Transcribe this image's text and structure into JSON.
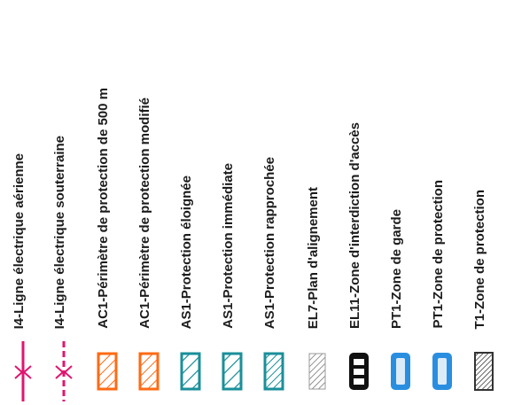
{
  "legend": {
    "items": [
      {
        "label": "I4-Ligne électrique aérienne",
        "symbol": "pink-line-cross-icon",
        "color": "#e0156f"
      },
      {
        "label": "I4-Ligne électrique souterraine",
        "symbol": "pink-dashed-line-cross-icon",
        "color": "#e0156f"
      },
      {
        "label": "AC1-Périmètre de protection de 500 m",
        "symbol": "orange-hatched-box-icon",
        "color": "#ff6a13"
      },
      {
        "label": "AC1-Périmètre de protection modifié",
        "symbol": "orange-hatched-box-icon",
        "color": "#ff6a13"
      },
      {
        "label": "AS1-Protection éloignée",
        "symbol": "teal-hatched-box-icon",
        "color": "#1a8f9a"
      },
      {
        "label": "AS1-Protection immédiate",
        "symbol": "teal-hatched-box-icon",
        "color": "#1a8f9a"
      },
      {
        "label": "AS1-Protection rapprochée",
        "symbol": "teal-dense-hatched-box-icon",
        "color": "#1a8f9a"
      },
      {
        "label": "EL7-Plan d'alignement",
        "symbol": "gray-hatched-box-icon",
        "color": "#777777"
      },
      {
        "label": "EL11-Zone d'interdiction d'accès",
        "symbol": "black-box-white-squares-icon",
        "color": "#111111"
      },
      {
        "label": "PT1-Zone de garde",
        "symbol": "blue-box-icon",
        "color": "#2a8ee0"
      },
      {
        "label": "PT1-Zone de protection",
        "symbol": "blue-box-icon",
        "color": "#2a8ee0"
      },
      {
        "label": "T1-Zone de protection",
        "symbol": "gray-dense-hatched-box-icon",
        "color": "#4a4a4a"
      }
    ]
  }
}
